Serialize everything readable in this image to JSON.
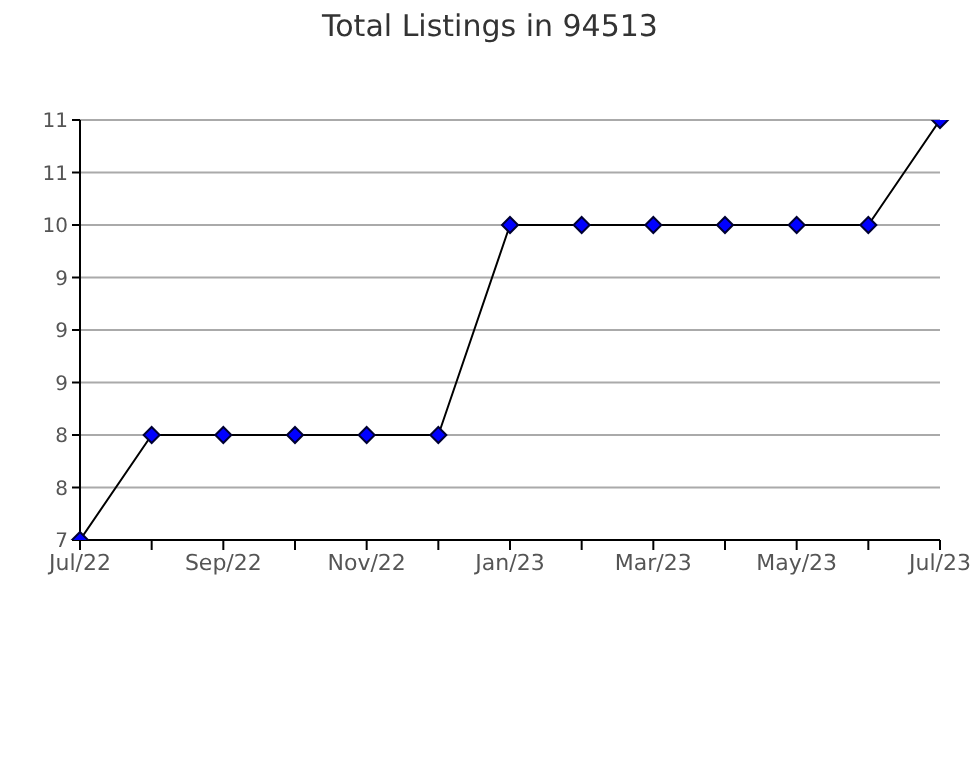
{
  "chart_data": {
    "type": "line",
    "title": "Total Listings in 94513",
    "categories": [
      "Jul/22",
      null,
      "Sep/22",
      null,
      "Nov/22",
      null,
      "Jan/23",
      null,
      "Mar/23",
      null,
      "May/23",
      null,
      "Jul/23"
    ],
    "series": [
      {
        "color": "#000000",
        "values": [
          7,
          8,
          8,
          8,
          8,
          8,
          10,
          10,
          10,
          10,
          10,
          10,
          11
        ]
      }
    ],
    "ylim": [
      7,
      11
    ],
    "yticks": [
      7,
      {
        "value": 7.5,
        "label": "8"
      },
      8,
      {
        "value": 8.5,
        "label": "9"
      },
      9,
      {
        "value": 9.5,
        "label": "9"
      },
      10,
      {
        "value": 10.5,
        "label": "11"
      },
      11
    ],
    "grid": "y",
    "legend": false,
    "marker": "diamond",
    "line_style": "solid"
  }
}
